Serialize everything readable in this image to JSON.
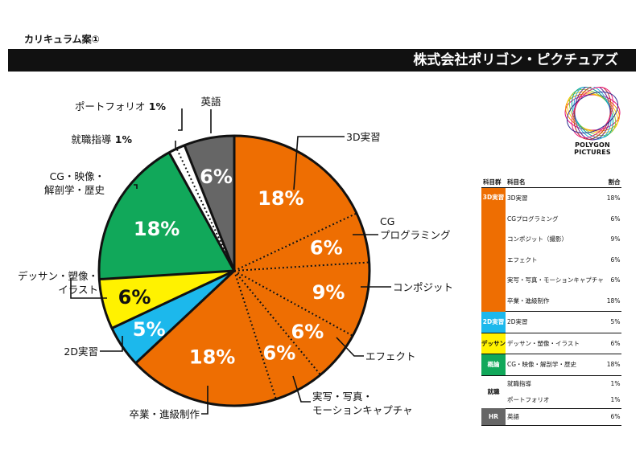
{
  "page_label": "カリキュラム案①",
  "company": "株式会社ポリゴン・ピクチュアズ",
  "logo_text": "POLYGON PICTURES",
  "chart_data": {
    "type": "pie",
    "start": "12 o'clock, clockwise",
    "slices": [
      {
        "label": "3D実習",
        "value": 18,
        "pct_label": "18%",
        "color": "#ee6e02",
        "group": "3D実習"
      },
      {
        "label": "CG プログラミング",
        "value": 6,
        "pct_label": "6%",
        "color": "#ee6e02",
        "group": "3D実習"
      },
      {
        "label": "コンポジット",
        "value": 9,
        "pct_label": "9%",
        "color": "#ee6e02",
        "group": "3D実習"
      },
      {
        "label": "エフェクト",
        "value": 6,
        "pct_label": "6%",
        "color": "#ee6e02",
        "group": "3D実習"
      },
      {
        "label": "実写・写真・ モーションキャプチャ",
        "value": 6,
        "pct_label": "6%",
        "color": "#ee6e02",
        "group": "3D実習"
      },
      {
        "label": "卒業・進級制作",
        "value": 18,
        "pct_label": "18%",
        "color": "#ee6e02",
        "group": "3D実習"
      },
      {
        "label": "2D実習",
        "value": 5,
        "pct_label": "5%",
        "color": "#1cb8ec",
        "group": "2D実習"
      },
      {
        "label": "デッサン・塑像・ イラスト",
        "value": 6,
        "pct_label": "6%",
        "color": "#fff200",
        "group": "デッサン"
      },
      {
        "label": "CG・映像・ 解剖学・歴史",
        "value": 18,
        "pct_label": "18%",
        "color": "#11a85a",
        "group": "概論"
      },
      {
        "label": "就職指導",
        "value": 1,
        "pct_label": "1%",
        "color": "#ffffff",
        "group": "就職"
      },
      {
        "label": "ポートフォリオ",
        "value": 1,
        "pct_label": "1%",
        "color": "#ffffff",
        "group": "就職"
      },
      {
        "label": "英語",
        "value": 6,
        "pct_label": "6%",
        "color": "#666666",
        "group": "HR"
      }
    ],
    "outside_labels": [
      {
        "text": "3D実習",
        "pct": ""
      },
      {
        "text": "CG プログラミング",
        "pct": ""
      },
      {
        "text": "コンポジット",
        "pct": ""
      },
      {
        "text": "エフェクト",
        "pct": ""
      },
      {
        "text": "実写・写真・ モーションキャプチャ",
        "pct": ""
      },
      {
        "text": "卒業・進級制作",
        "pct": ""
      },
      {
        "text": "2D実習",
        "pct": ""
      },
      {
        "text": "デッサン・塑像・ イラスト",
        "pct": ""
      },
      {
        "text": "CG・映像・ 解剖学・歴史",
        "pct": ""
      },
      {
        "text": "就職指導",
        "pct": "1%"
      },
      {
        "text": "ポートフォリオ",
        "pct": "1%"
      },
      {
        "text": "英語",
        "pct": ""
      }
    ]
  },
  "legend": {
    "headers": {
      "group": "科目群",
      "subject": "科目名",
      "pct": "割合"
    },
    "groups": [
      {
        "name": "3D実習",
        "color": "#ee6e02",
        "text_color": "#ffffff",
        "rows": [
          {
            "subject": "3D実習",
            "pct": "18%"
          },
          {
            "subject": "CGプログラミング",
            "pct": "6%"
          },
          {
            "subject": "コンポジット（撮影）",
            "pct": "9%"
          },
          {
            "subject": "エフェクト",
            "pct": "6%"
          },
          {
            "subject": "実写・写真・モーションキャプチャ",
            "pct": "6%"
          },
          {
            "subject": "卒業・進級制作",
            "pct": "18%"
          }
        ]
      },
      {
        "name": "2D実習",
        "color": "#1cb8ec",
        "text_color": "#ffffff",
        "rows": [
          {
            "subject": "2D実習",
            "pct": "5%"
          }
        ]
      },
      {
        "name": "デッサン",
        "color": "#fff200",
        "text_color": "#111111",
        "rows": [
          {
            "subject": "デッサン・塑像・イラスト",
            "pct": "6%"
          }
        ]
      },
      {
        "name": "概論",
        "color": "#11a85a",
        "text_color": "#ffffff",
        "rows": [
          {
            "subject": "CG・映像・解剖学・歴史",
            "pct": "18%"
          }
        ]
      },
      {
        "name": "就職",
        "color": "#ffffff",
        "text_color": "#111111",
        "rows": [
          {
            "subject": "就職指導",
            "pct": "1%"
          },
          {
            "subject": "ポートフォリオ",
            "pct": "1%"
          }
        ]
      },
      {
        "name": "HR",
        "color": "#666666",
        "text_color": "#ffffff",
        "rows": [
          {
            "subject": "英語",
            "pct": "6%"
          }
        ]
      }
    ]
  }
}
